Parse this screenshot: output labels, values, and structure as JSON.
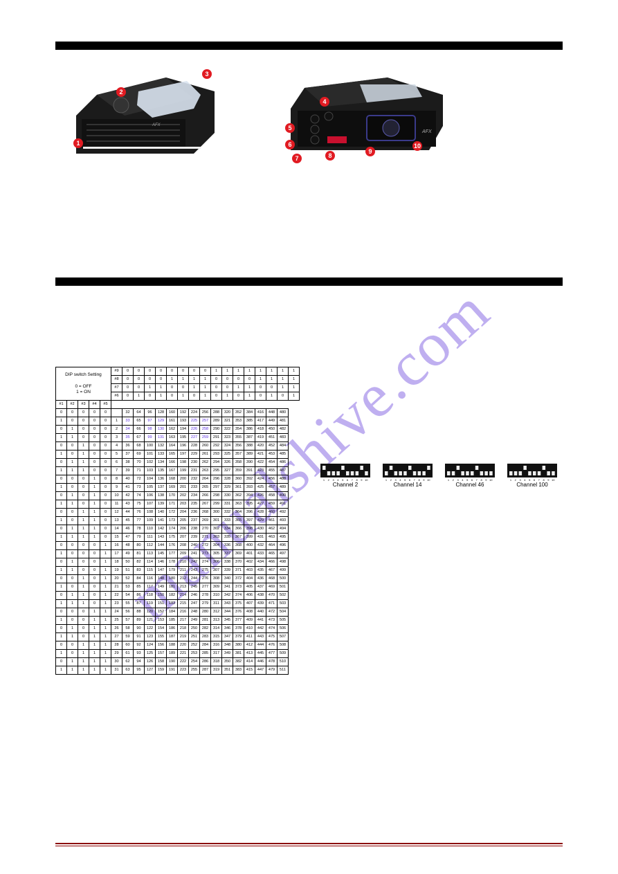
{
  "watermark": "manualshive.com",
  "headers": {
    "bar1": "",
    "bar2": ""
  },
  "callouts_front": [
    "1",
    "2",
    "3"
  ],
  "callouts_rear": [
    "4",
    "5",
    "6",
    "7",
    "8",
    "9",
    "10"
  ],
  "dip_examples": [
    "Channel 2",
    "Channel 14",
    "Channel 46",
    "Channel 100"
  ],
  "dip_table": {
    "setting_label": "DIP switch Setting",
    "off_label": "0 = OFF",
    "on_label": "1 = ON",
    "left_headers_row": [
      "#1",
      "#2",
      "#3",
      "#4",
      "#5"
    ],
    "top_group_rows": {
      "r9": [
        "#9",
        "0",
        "0",
        "0",
        "0",
        "0",
        "0",
        "0",
        "0",
        "1",
        "1",
        "1",
        "1",
        "1",
        "1",
        "1",
        "1"
      ],
      "r8": [
        "#8",
        "0",
        "0",
        "0",
        "0",
        "1",
        "1",
        "1",
        "1",
        "0",
        "0",
        "0",
        "0",
        "1",
        "1",
        "1",
        "1"
      ],
      "r7": [
        "#7",
        "0",
        "0",
        "1",
        "1",
        "0",
        "0",
        "1",
        "1",
        "0",
        "0",
        "1",
        "1",
        "0",
        "0",
        "1",
        "1"
      ],
      "r6": [
        "#6",
        "0",
        "1",
        "0",
        "1",
        "0",
        "1",
        "0",
        "1",
        "0",
        "1",
        "0",
        "1",
        "0",
        "1",
        "0",
        "1"
      ]
    },
    "rows": [
      {
        "bits": [
          "0",
          "0",
          "0",
          "0",
          "0"
        ],
        "idx": "",
        "vals": [
          "32",
          "64",
          "96",
          "128",
          "160",
          "192",
          "224",
          "256",
          "288",
          "320",
          "352",
          "384",
          "416",
          "448",
          "480"
        ]
      },
      {
        "bits": [
          "1",
          "0",
          "0",
          "0",
          "0"
        ],
        "idx": "1",
        "vals": [
          "33",
          "65",
          "97",
          "129",
          "161",
          "193",
          "225",
          "257",
          "289",
          "321",
          "353",
          "385",
          "417",
          "449",
          "481"
        ]
      },
      {
        "bits": [
          "0",
          "1",
          "0",
          "0",
          "0"
        ],
        "idx": "2",
        "vals": [
          "34",
          "66",
          "98",
          "130",
          "162",
          "194",
          "226",
          "258",
          "290",
          "322",
          "354",
          "386",
          "418",
          "450",
          "482"
        ]
      },
      {
        "bits": [
          "1",
          "1",
          "0",
          "0",
          "0"
        ],
        "idx": "3",
        "vals": [
          "35",
          "67",
          "99",
          "131",
          "163",
          "195",
          "227",
          "259",
          "291",
          "323",
          "355",
          "387",
          "419",
          "451",
          "483"
        ]
      },
      {
        "bits": [
          "0",
          "0",
          "1",
          "0",
          "0"
        ],
        "idx": "4",
        "vals": [
          "36",
          "68",
          "100",
          "132",
          "164",
          "196",
          "228",
          "260",
          "292",
          "324",
          "356",
          "388",
          "420",
          "452",
          "484"
        ]
      },
      {
        "bits": [
          "1",
          "0",
          "1",
          "0",
          "0"
        ],
        "idx": "5",
        "vals": [
          "37",
          "69",
          "101",
          "133",
          "165",
          "197",
          "229",
          "261",
          "293",
          "325",
          "357",
          "389",
          "421",
          "453",
          "485"
        ]
      },
      {
        "bits": [
          "0",
          "1",
          "1",
          "0",
          "0"
        ],
        "idx": "6",
        "vals": [
          "38",
          "70",
          "102",
          "134",
          "166",
          "198",
          "230",
          "262",
          "294",
          "326",
          "358",
          "390",
          "422",
          "454",
          "486"
        ]
      },
      {
        "bits": [
          "1",
          "1",
          "1",
          "0",
          "0"
        ],
        "idx": "7",
        "vals": [
          "39",
          "71",
          "103",
          "135",
          "167",
          "199",
          "231",
          "263",
          "295",
          "327",
          "359",
          "391",
          "423",
          "455",
          "487"
        ]
      },
      {
        "bits": [
          "0",
          "0",
          "0",
          "1",
          "0"
        ],
        "idx": "8",
        "vals": [
          "40",
          "72",
          "104",
          "136",
          "168",
          "200",
          "232",
          "264",
          "296",
          "328",
          "360",
          "392",
          "424",
          "456",
          "488"
        ]
      },
      {
        "bits": [
          "1",
          "0",
          "0",
          "1",
          "0"
        ],
        "idx": "9",
        "vals": [
          "41",
          "73",
          "105",
          "137",
          "169",
          "201",
          "233",
          "265",
          "297",
          "329",
          "361",
          "393",
          "425",
          "457",
          "489"
        ]
      },
      {
        "bits": [
          "0",
          "1",
          "0",
          "1",
          "0"
        ],
        "idx": "10",
        "vals": [
          "42",
          "74",
          "106",
          "138",
          "170",
          "202",
          "234",
          "266",
          "298",
          "330",
          "362",
          "394",
          "426",
          "458",
          "490"
        ]
      },
      {
        "bits": [
          "1",
          "1",
          "0",
          "1",
          "0"
        ],
        "idx": "11",
        "vals": [
          "43",
          "75",
          "107",
          "139",
          "171",
          "203",
          "235",
          "267",
          "299",
          "331",
          "363",
          "395",
          "427",
          "459",
          "491"
        ]
      },
      {
        "bits": [
          "0",
          "0",
          "1",
          "1",
          "0"
        ],
        "idx": "12",
        "vals": [
          "44",
          "76",
          "108",
          "140",
          "172",
          "204",
          "236",
          "268",
          "300",
          "332",
          "364",
          "396",
          "428",
          "460",
          "492"
        ]
      },
      {
        "bits": [
          "1",
          "0",
          "1",
          "1",
          "0"
        ],
        "idx": "13",
        "vals": [
          "45",
          "77",
          "109",
          "141",
          "173",
          "205",
          "237",
          "269",
          "301",
          "333",
          "365",
          "397",
          "429",
          "461",
          "493"
        ]
      },
      {
        "bits": [
          "0",
          "1",
          "1",
          "1",
          "0"
        ],
        "idx": "14",
        "vals": [
          "46",
          "78",
          "110",
          "142",
          "174",
          "206",
          "238",
          "270",
          "302",
          "334",
          "366",
          "398",
          "430",
          "462",
          "494"
        ]
      },
      {
        "bits": [
          "1",
          "1",
          "1",
          "1",
          "0"
        ],
        "idx": "15",
        "vals": [
          "47",
          "79",
          "111",
          "143",
          "175",
          "207",
          "239",
          "271",
          "303",
          "335",
          "367",
          "399",
          "431",
          "463",
          "495"
        ]
      },
      {
        "bits": [
          "0",
          "0",
          "0",
          "0",
          "1"
        ],
        "idx": "16",
        "vals": [
          "48",
          "80",
          "112",
          "144",
          "176",
          "208",
          "240",
          "272",
          "304",
          "336",
          "368",
          "400",
          "432",
          "464",
          "496"
        ]
      },
      {
        "bits": [
          "1",
          "0",
          "0",
          "0",
          "1"
        ],
        "idx": "17",
        "vals": [
          "49",
          "81",
          "113",
          "145",
          "177",
          "209",
          "241",
          "273",
          "305",
          "337",
          "369",
          "401",
          "433",
          "465",
          "497"
        ]
      },
      {
        "bits": [
          "0",
          "1",
          "0",
          "0",
          "1"
        ],
        "idx": "18",
        "vals": [
          "50",
          "82",
          "114",
          "146",
          "178",
          "210",
          "242",
          "274",
          "306",
          "338",
          "370",
          "402",
          "434",
          "466",
          "498"
        ]
      },
      {
        "bits": [
          "1",
          "1",
          "0",
          "0",
          "1"
        ],
        "idx": "19",
        "vals": [
          "51",
          "83",
          "115",
          "147",
          "179",
          "211",
          "243",
          "275",
          "307",
          "339",
          "371",
          "403",
          "435",
          "467",
          "499"
        ]
      },
      {
        "bits": [
          "0",
          "0",
          "1",
          "0",
          "1"
        ],
        "idx": "20",
        "vals": [
          "52",
          "84",
          "116",
          "148",
          "180",
          "212",
          "244",
          "276",
          "308",
          "340",
          "372",
          "404",
          "436",
          "468",
          "500"
        ]
      },
      {
        "bits": [
          "1",
          "0",
          "1",
          "0",
          "1"
        ],
        "idx": "21",
        "vals": [
          "53",
          "85",
          "117",
          "149",
          "181",
          "213",
          "245",
          "277",
          "309",
          "341",
          "373",
          "405",
          "437",
          "469",
          "501"
        ]
      },
      {
        "bits": [
          "0",
          "1",
          "1",
          "0",
          "1"
        ],
        "idx": "22",
        "vals": [
          "54",
          "86",
          "118",
          "150",
          "182",
          "214",
          "246",
          "278",
          "310",
          "342",
          "374",
          "406",
          "438",
          "470",
          "502"
        ]
      },
      {
        "bits": [
          "1",
          "1",
          "1",
          "0",
          "1"
        ],
        "idx": "23",
        "vals": [
          "55",
          "87",
          "119",
          "151",
          "183",
          "215",
          "247",
          "279",
          "311",
          "343",
          "375",
          "407",
          "439",
          "471",
          "503"
        ]
      },
      {
        "bits": [
          "0",
          "0",
          "0",
          "1",
          "1"
        ],
        "idx": "24",
        "vals": [
          "56",
          "88",
          "120",
          "152",
          "184",
          "216",
          "248",
          "280",
          "312",
          "344",
          "376",
          "408",
          "440",
          "472",
          "504"
        ]
      },
      {
        "bits": [
          "1",
          "0",
          "0",
          "1",
          "1"
        ],
        "idx": "25",
        "vals": [
          "57",
          "89",
          "121",
          "153",
          "185",
          "217",
          "249",
          "281",
          "313",
          "345",
          "377",
          "409",
          "441",
          "473",
          "505"
        ]
      },
      {
        "bits": [
          "0",
          "1",
          "0",
          "1",
          "1"
        ],
        "idx": "26",
        "vals": [
          "58",
          "90",
          "122",
          "154",
          "186",
          "218",
          "250",
          "282",
          "314",
          "346",
          "378",
          "410",
          "442",
          "474",
          "506"
        ]
      },
      {
        "bits": [
          "1",
          "1",
          "0",
          "1",
          "1"
        ],
        "idx": "27",
        "vals": [
          "59",
          "91",
          "123",
          "155",
          "187",
          "219",
          "251",
          "283",
          "315",
          "347",
          "379",
          "411",
          "443",
          "475",
          "507"
        ]
      },
      {
        "bits": [
          "0",
          "0",
          "1",
          "1",
          "1"
        ],
        "idx": "28",
        "vals": [
          "60",
          "92",
          "124",
          "156",
          "188",
          "220",
          "252",
          "284",
          "316",
          "348",
          "380",
          "412",
          "444",
          "476",
          "508"
        ]
      },
      {
        "bits": [
          "1",
          "0",
          "1",
          "1",
          "1"
        ],
        "idx": "29",
        "vals": [
          "61",
          "93",
          "125",
          "157",
          "189",
          "221",
          "253",
          "285",
          "317",
          "349",
          "381",
          "413",
          "445",
          "477",
          "509"
        ]
      },
      {
        "bits": [
          "0",
          "1",
          "1",
          "1",
          "1"
        ],
        "idx": "30",
        "vals": [
          "62",
          "94",
          "126",
          "158",
          "190",
          "222",
          "254",
          "286",
          "318",
          "350",
          "382",
          "414",
          "446",
          "478",
          "510"
        ]
      },
      {
        "bits": [
          "1",
          "1",
          "1",
          "1",
          "1"
        ],
        "idx": "31",
        "vals": [
          "63",
          "95",
          "127",
          "159",
          "191",
          "223",
          "255",
          "287",
          "319",
          "351",
          "383",
          "415",
          "447",
          "479",
          "511"
        ]
      }
    ],
    "highlight_cols": [
      0,
      2,
      3,
      6,
      7
    ],
    "highlight_rows": [
      1,
      2,
      3
    ],
    "colors": {
      "border": "#000000",
      "highlight_text": "#5b2fe0",
      "watermark": "rgba(114,78,222,0.45)",
      "callout": "#e11b22",
      "footer_rule": "#8b0000"
    }
  }
}
